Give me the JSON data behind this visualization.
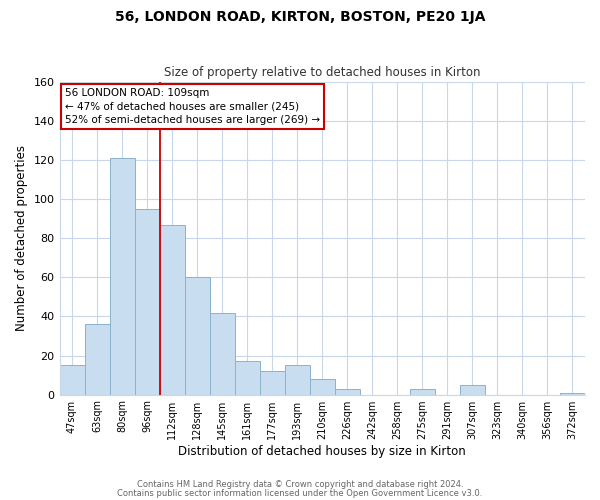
{
  "title": "56, LONDON ROAD, KIRTON, BOSTON, PE20 1JA",
  "subtitle": "Size of property relative to detached houses in Kirton",
  "xlabel": "Distribution of detached houses by size in Kirton",
  "ylabel": "Number of detached properties",
  "bar_color": "#c8ddef",
  "bar_edge_color": "#8ab4cc",
  "categories": [
    "47sqm",
    "63sqm",
    "80sqm",
    "96sqm",
    "112sqm",
    "128sqm",
    "145sqm",
    "161sqm",
    "177sqm",
    "193sqm",
    "210sqm",
    "226sqm",
    "242sqm",
    "258sqm",
    "275sqm",
    "291sqm",
    "307sqm",
    "323sqm",
    "340sqm",
    "356sqm",
    "372sqm"
  ],
  "values": [
    15,
    36,
    121,
    95,
    87,
    60,
    42,
    17,
    12,
    15,
    8,
    3,
    0,
    0,
    3,
    0,
    5,
    0,
    0,
    0,
    1
  ],
  "ylim": [
    0,
    160
  ],
  "yticks": [
    0,
    20,
    40,
    60,
    80,
    100,
    120,
    140,
    160
  ],
  "vline_index": 3.5,
  "vline_color": "#cc0000",
  "annotation_line1": "56 LONDON ROAD: 109sqm",
  "annotation_line2": "← 47% of detached houses are smaller (245)",
  "annotation_line3": "52% of semi-detached houses are larger (269) →",
  "annotation_box_color": "#ffffff",
  "annotation_box_edge": "#cc0000",
  "footer1": "Contains HM Land Registry data © Crown copyright and database right 2024.",
  "footer2": "Contains public sector information licensed under the Open Government Licence v3.0.",
  "background_color": "#ffffff",
  "grid_color": "#c8d8e8"
}
